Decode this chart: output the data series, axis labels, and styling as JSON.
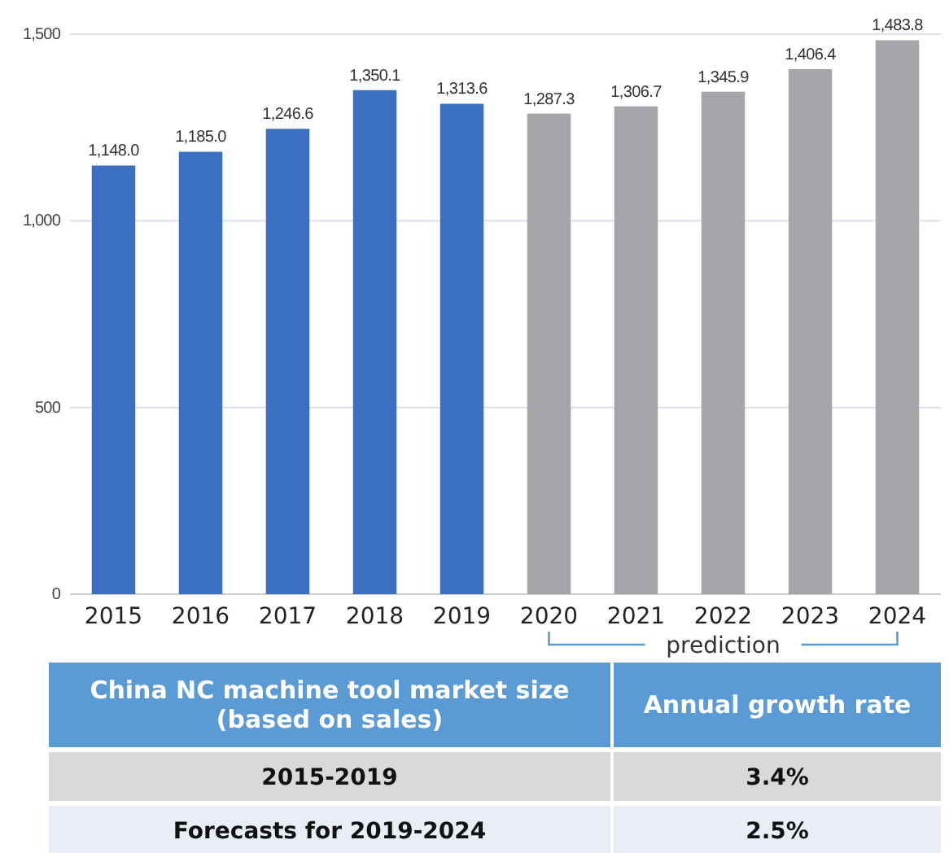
{
  "chart_data": {
    "type": "bar",
    "categories": [
      "2015",
      "2016",
      "2017",
      "2018",
      "2019",
      "2020",
      "2021",
      "2022",
      "2023",
      "2024"
    ],
    "values": [
      1148.0,
      1185.0,
      1246.6,
      1350.1,
      1313.6,
      1287.3,
      1306.7,
      1345.9,
      1406.4,
      1483.8
    ],
    "colors": [
      "#3b6fbf",
      "#3b6fbf",
      "#3b6fbf",
      "#3b6fbf",
      "#3b6fbf",
      "#a5a6aa",
      "#a5a6aa",
      "#a5a6aa",
      "#a5a6aa",
      "#a5a6aa"
    ],
    "value_labels": [
      "1,148.0",
      "1,185.0",
      "1,246.6",
      "1,350.1",
      "1,313.6",
      "1,287.3",
      "1,306.7",
      "1,345.9",
      "1,406.4",
      "1,483.8"
    ],
    "ylim": [
      0,
      1500
    ],
    "yticks": [
      0,
      500,
      {
        "value": 1000,
        "label": "1,000"
      },
      {
        "value": 1500,
        "label": "1,500"
      }
    ],
    "grid": "y",
    "annotations": [
      "prediction",
      "China NC machine tool market size (based on sales)",
      "Annual growth rate",
      "2015-2019",
      "3.4%",
      "Forecasts for 2019-2024",
      "2.5%"
    ]
  }
}
